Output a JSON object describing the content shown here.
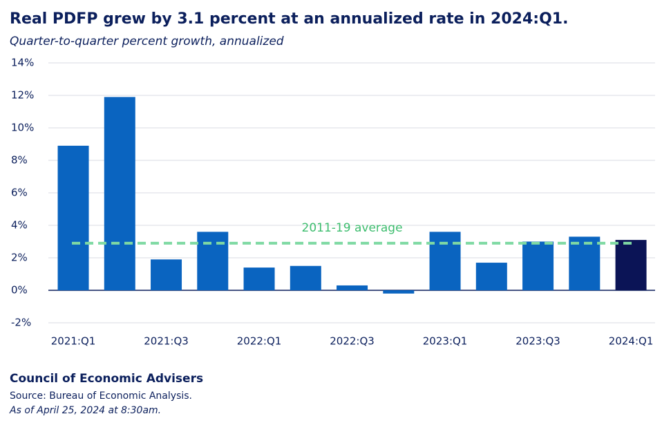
{
  "chart_data": {
    "type": "bar",
    "title": "Real PDFP grew by 3.1 percent at an annualized rate in 2024:Q1.",
    "subtitle": "Quarter-to-quarter percent growth, annualized",
    "categories": [
      "2021:Q1",
      null,
      "2021:Q3",
      null,
      "2022:Q1",
      null,
      "2022:Q3",
      null,
      "2023:Q1",
      null,
      "2023:Q3",
      null,
      "2024:Q1"
    ],
    "values": [
      8.9,
      11.9,
      1.9,
      3.6,
      1.4,
      1.5,
      0.3,
      -0.2,
      3.6,
      1.7,
      3.0,
      3.3,
      3.1
    ],
    "colors": [
      "#0a64c0",
      "#0a64c0",
      "#0a64c0",
      "#0a64c0",
      "#0a64c0",
      "#0a64c0",
      "#0a64c0",
      "#0a64c0",
      "#0a64c0",
      "#0a64c0",
      "#0a64c0",
      "#0a64c0",
      "#0b1456"
    ],
    "ylim": [
      -2,
      14
    ],
    "yticks": [
      {
        "value": -2,
        "label": "-2%"
      },
      {
        "value": 0,
        "label": "0%"
      },
      {
        "value": 2,
        "label": "2%"
      },
      {
        "value": 4,
        "label": "4%"
      },
      {
        "value": 6,
        "label": "6%"
      },
      {
        "value": 8,
        "label": "8%"
      },
      {
        "value": 10,
        "label": "10%"
      },
      {
        "value": 12,
        "label": "12%"
      },
      {
        "value": 14,
        "label": "14%"
      }
    ],
    "grid": true,
    "average": {
      "label": "2011-19 average",
      "value": 2.9,
      "color": "#7fd9a3",
      "label_color": "#3dbd6e"
    },
    "source": {
      "organization": "Council of Economic Advisers",
      "note": "Source: Bureau of Economic Analysis.",
      "date": "As of April 25, 2024 at 8:30am."
    }
  }
}
